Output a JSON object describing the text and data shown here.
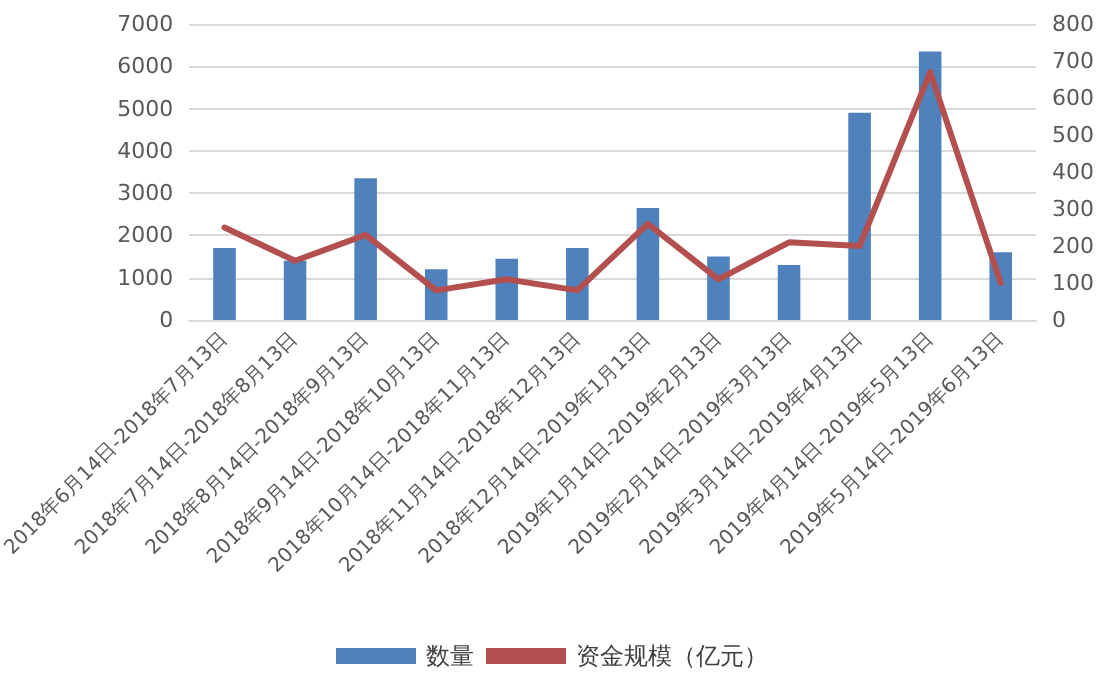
{
  "chart_data": {
    "type": "bar",
    "categories": [
      "2018年6月14日-2018年7月13日",
      "2018年7月14日-2018年8月13日",
      "2018年8月14日-2018年9月13日",
      "2018年9月14日-2018年10月13日",
      "2018年10月14日-2018年11月13日",
      "2018年11月14日-2018年12月13日",
      "2018年12月14日-2019年1月13日",
      "2019年1月14日-2019年2月13日",
      "2019年2月14日-2019年3月13日",
      "2019年3月14日-2019年4月13日",
      "2019年4月14日-2019年5月13日",
      "2019年5月14日-2019年6月13日"
    ],
    "series": [
      {
        "name": "数量",
        "color": "#4f81bd",
        "values": [
          1700,
          1400,
          3350,
          1200,
          1450,
          1700,
          2650,
          1500,
          1300,
          4900,
          6350,
          1600
        ]
      },
      {
        "name": "资金规模（亿元）",
        "type": "line",
        "axis": "y2",
        "color": "#b3504f",
        "values": [
          250,
          160,
          230,
          80,
          110,
          80,
          260,
          110,
          210,
          200,
          670,
          100
        ]
      }
    ],
    "ylim": [
      0,
      7000
    ],
    "yticks": [
      0,
      1000,
      2000,
      3000,
      4000,
      5000,
      6000,
      7000
    ],
    "y2lim": [
      0,
      800
    ],
    "y2ticks": [
      0,
      100,
      200,
      300,
      400,
      500,
      600,
      700,
      800
    ],
    "grid": "y",
    "legend": "bottom",
    "marker": "none",
    "line_style": "solid"
  }
}
